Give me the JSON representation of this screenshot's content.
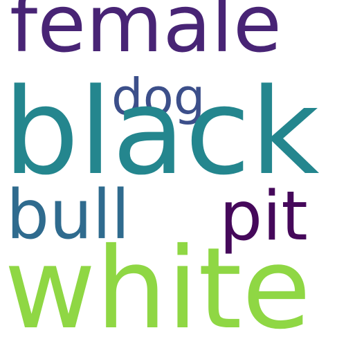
{
  "word_cloud": {
    "words": [
      {
        "text": "female",
        "color": "#482475"
      },
      {
        "text": "dog",
        "color": "#3c4f8a"
      },
      {
        "text": "black",
        "color": "#24868e"
      },
      {
        "text": "bull",
        "color": "#2f6b8e"
      },
      {
        "text": "pit",
        "color": "#45085a"
      },
      {
        "text": "white",
        "color": "#8fd744"
      }
    ]
  }
}
